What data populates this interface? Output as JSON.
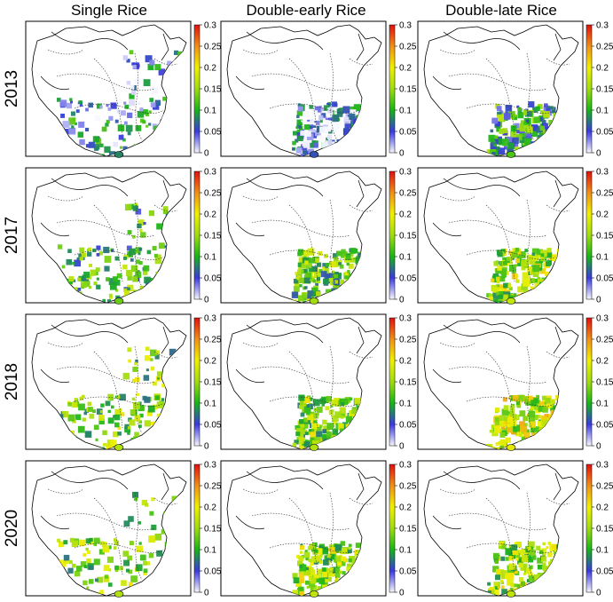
{
  "column_titles": [
    "Single Rice",
    "Double-early Rice",
    "Double-late Rice"
  ],
  "row_labels": [
    "2013",
    "2017",
    "2018",
    "2020"
  ],
  "colorbar": {
    "min": 0,
    "max": 0.3,
    "ticks": [
      "0.3",
      "0.25",
      "0.2",
      "0.15",
      "0.1",
      "0.05",
      "0"
    ],
    "colors": [
      "#f8f8ff",
      "#3a3adc",
      "#18b418",
      "#a0dc10",
      "#f0f000",
      "#f09018",
      "#e01010"
    ]
  },
  "panels": [
    {
      "year": "2013",
      "crop": "Single Rice",
      "level": 0.06
    },
    {
      "year": "2013",
      "crop": "Double-early Rice",
      "level": 0.04
    },
    {
      "year": "2013",
      "crop": "Double-late Rice",
      "level": 0.1
    },
    {
      "year": "2017",
      "crop": "Single Rice",
      "level": 0.11
    },
    {
      "year": "2017",
      "crop": "Double-early Rice",
      "level": 0.13
    },
    {
      "year": "2017",
      "crop": "Double-late Rice",
      "level": 0.15
    },
    {
      "year": "2018",
      "crop": "Single Rice",
      "level": 0.14
    },
    {
      "year": "2018",
      "crop": "Double-early Rice",
      "level": 0.14
    },
    {
      "year": "2018",
      "crop": "Double-late Rice",
      "level": 0.17
    },
    {
      "year": "2020",
      "crop": "Single Rice",
      "level": 0.14
    },
    {
      "year": "2020",
      "crop": "Double-early Rice",
      "level": 0.15
    },
    {
      "year": "2020",
      "crop": "Double-late Rice",
      "level": 0.15
    }
  ]
}
